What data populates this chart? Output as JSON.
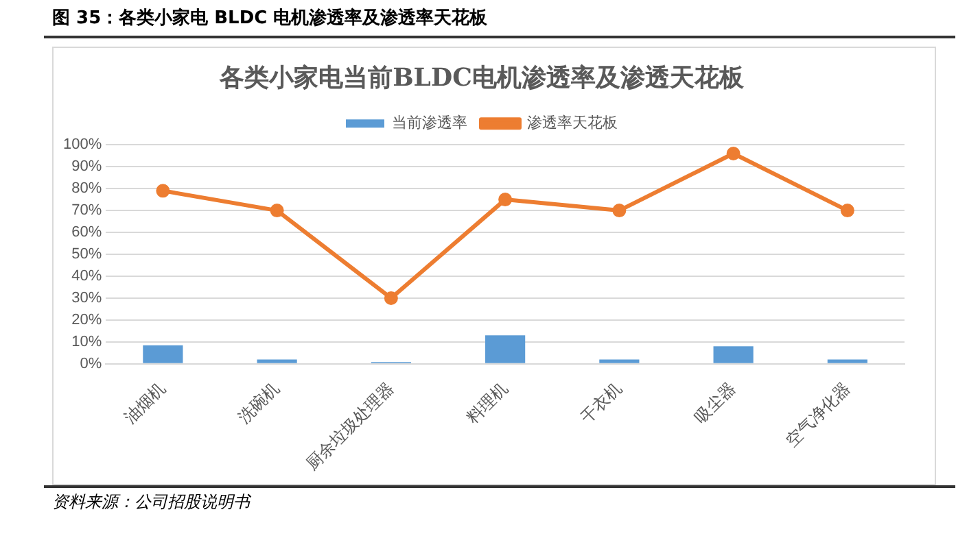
{
  "chart_data": {
    "type": "bar",
    "title": "各类小家电当前BLDC电机渗透率及渗透天花板",
    "annotations": [
      "图 35：各类小家电 BLDC 电机渗透率及渗透率天花板",
      "资料来源：公司招股说明书"
    ],
    "categories": [
      "油烟机",
      "洗碗机",
      "厨余垃圾处理器",
      "料理机",
      "干衣机",
      "吸尘器",
      "空气净化器"
    ],
    "series": [
      {
        "name": "当前渗透率",
        "color": "#5b9bd5",
        "values": [
          8.5,
          2,
          0.8,
          13,
          2,
          8,
          2
        ]
      },
      {
        "name": "渗透率天花板",
        "type": "line",
        "color": "#ed7d31",
        "values": [
          79,
          70,
          30,
          75,
          70,
          96,
          70
        ]
      }
    ],
    "ylim": [
      0,
      100
    ],
    "yticks": [
      {
        "value": 0,
        "label": "0%"
      },
      {
        "value": 10,
        "label": "10%"
      },
      {
        "value": 20,
        "label": "20%"
      },
      {
        "value": 30,
        "label": "30%"
      },
      {
        "value": 40,
        "label": "40%"
      },
      {
        "value": 50,
        "label": "50%"
      },
      {
        "value": 60,
        "label": "60%"
      },
      {
        "value": 70,
        "label": "70%"
      },
      {
        "value": 80,
        "label": "80%"
      },
      {
        "value": 90,
        "label": "90%"
      },
      {
        "value": 100,
        "label": "100%"
      }
    ],
    "grid": "y",
    "legend": "top",
    "marker": "circle",
    "line_style": "solid"
  }
}
